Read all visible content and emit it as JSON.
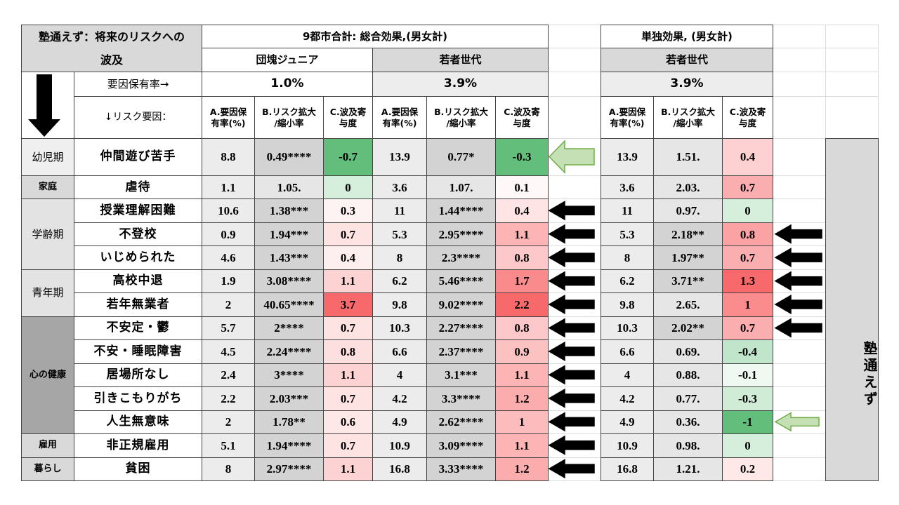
{
  "header": {
    "title_line1": "塾通えず：将来のリスクへの",
    "title_line2": "波及",
    "side_label": "波及",
    "total_effect": "9都市合計: 総合効果,(男女計)",
    "single_effect": "単独効果, (男女計)",
    "groups": [
      "団塊ジュニア",
      "若者世代",
      "若者世代"
    ],
    "rate_label": "要因保有率→",
    "rates": [
      "1.0%",
      "3.9%",
      "3.9%"
    ],
    "factor_label": "↓リスク要因：",
    "column_headers": [
      [
        "A.要因保",
        "有率(%)"
      ],
      [
        "B.リスク拡大",
        "/縮小率"
      ],
      [
        "C.波及寄",
        "与度"
      ]
    ],
    "right_label": "塾通えず"
  },
  "stages": [
    {
      "label": "幼児期",
      "factors": [
        {
          "name": "仲間遊び苦手",
          "values": [
            [
              8.8,
              "0.49****",
              -0.7
            ],
            [
              13.9,
              "0.77*",
              -0.3
            ],
            [
              13.9,
              "1.51.",
              0.4
            ]
          ]
        }
      ]
    },
    {
      "label": "家庭",
      "factors": [
        {
          "name": "虐待",
          "values": [
            [
              1.1,
              "1.05.",
              0
            ],
            [
              3.6,
              "1.07.",
              0.1
            ],
            [
              3.6,
              "2.03.",
              0.7
            ]
          ]
        }
      ]
    },
    {
      "label": "学齢期",
      "factors": [
        {
          "name": "授業理解困難",
          "values": [
            [
              10.6,
              "1.38***",
              0.3
            ],
            [
              11,
              "1.44****",
              0.4
            ],
            [
              11,
              "0.97.",
              0
            ]
          ]
        },
        {
          "name": "不登校",
          "values": [
            [
              0.9,
              "1.94***",
              0.7
            ],
            [
              5.3,
              "2.95****",
              1.1
            ],
            [
              5.3,
              "2.18**",
              0.8
            ]
          ]
        },
        {
          "name": "いじめられた",
          "values": [
            [
              4.6,
              "1.43***",
              0.4
            ],
            [
              8,
              "2.3****",
              0.8
            ],
            [
              8,
              "1.97**",
              0.7
            ]
          ]
        }
      ]
    },
    {
      "label": "青年期",
      "factors": [
        {
          "name": "高校中退",
          "values": [
            [
              1.9,
              "3.08****",
              1.1
            ],
            [
              6.2,
              "5.46****",
              1.7
            ],
            [
              6.2,
              "3.71**",
              1.3
            ]
          ]
        },
        {
          "name": "若年無業者",
          "values": [
            [
              2,
              "40.65****",
              3.7
            ],
            [
              9.8,
              "9.02****",
              2.2
            ],
            [
              9.8,
              "2.65.",
              1
            ]
          ]
        }
      ]
    },
    {
      "label": "心の健康",
      "factors": [
        {
          "name": "不安定・鬱",
          "values": [
            [
              5.7,
              "2****",
              0.7
            ],
            [
              10.3,
              "2.27****",
              0.8
            ],
            [
              10.3,
              "2.02**",
              0.7
            ]
          ]
        },
        {
          "name": "不安・睡眠障害",
          "values": [
            [
              4.5,
              "2.24****",
              0.8
            ],
            [
              6.6,
              "2.37****",
              0.9
            ],
            [
              6.6,
              "0.69.",
              -0.4
            ]
          ]
        },
        {
          "name": "居場所なし",
          "values": [
            [
              2.4,
              "3****",
              1.1
            ],
            [
              4,
              "3.1***",
              1.1
            ],
            [
              4,
              "0.88.",
              -0.1
            ]
          ]
        },
        {
          "name": "引きこもりがち",
          "values": [
            [
              2.2,
              "2.03***",
              0.7
            ],
            [
              4.2,
              "3.3****",
              1.2
            ],
            [
              4.2,
              "0.77.",
              -0.3
            ]
          ]
        },
        {
          "name": "人生無意味",
          "values": [
            [
              2,
              "1.78**",
              0.6
            ],
            [
              4.9,
              "2.62****",
              1
            ],
            [
              4.9,
              "0.36.",
              -1
            ]
          ]
        }
      ]
    },
    {
      "label": "雇用",
      "factors": [
        {
          "name": "非正規雇用",
          "values": [
            [
              5.1,
              "1.94****",
              0.7
            ],
            [
              10.9,
              "3.09****",
              1.1
            ],
            [
              10.9,
              "0.98.",
              0
            ]
          ]
        }
      ]
    },
    {
      "label": "暮らし",
      "factors": [
        {
          "name": "貧困",
          "values": [
            [
              8,
              "2.97****",
              1.1
            ],
            [
              16.8,
              "3.33****",
              1.2
            ],
            [
              16.8,
              "1.21.",
              0.2
            ]
          ]
        }
      ]
    }
  ]
}
